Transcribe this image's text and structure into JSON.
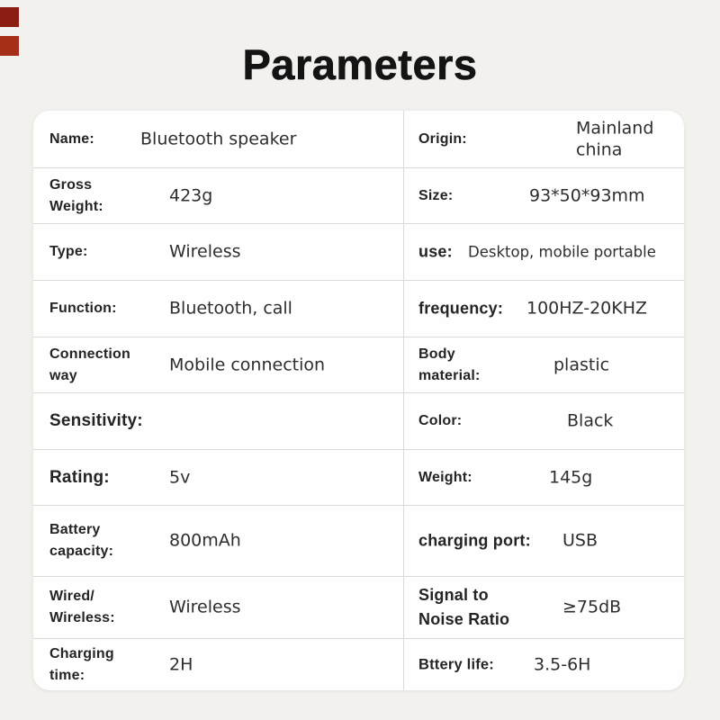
{
  "page": {
    "title": "Parameters"
  },
  "theme": {
    "background": "#f2f1ee",
    "card_background": "#fefefe",
    "divider_color": "#dcdad6",
    "label_color": "#242424",
    "value_color": "#2e2e2e",
    "title_color": "#141414",
    "corner_mark_dark": "#8c1d12",
    "corner_mark_light": "#a62f1a"
  },
  "table": {
    "rows": [
      {
        "left": {
          "label": "Name:",
          "value": "Bluetooth speaker"
        },
        "right": {
          "label": "Origin:",
          "value": "Mainland china"
        }
      },
      {
        "left": {
          "label": "Gross\nWeight:",
          "value": "423g"
        },
        "right": {
          "label": "Size:",
          "value": "93*50*93mm"
        }
      },
      {
        "left": {
          "label": "Type:",
          "value": "Wireless"
        },
        "right": {
          "label": "use:",
          "value": "Desktop, mobile portable"
        }
      },
      {
        "left": {
          "label": "Function:",
          "value": "Bluetooth, call"
        },
        "right": {
          "label": "frequency:",
          "value": "100HZ-20KHZ"
        }
      },
      {
        "left": {
          "label": "Connection\nway",
          "value": "Mobile connection"
        },
        "right": {
          "label": "Body\nmaterial:",
          "value": "plastic"
        }
      },
      {
        "left": {
          "label": "Sensitivity:",
          "value": ""
        },
        "right": {
          "label": "Color:",
          "value": "Black"
        }
      },
      {
        "left": {
          "label": "Rating:",
          "value": "5v"
        },
        "right": {
          "label": "Weight:",
          "value": "145g"
        }
      },
      {
        "left": {
          "label": "Battery\ncapacity:",
          "value": "800mAh"
        },
        "right": {
          "label": "charging port:",
          "value": "USB"
        }
      },
      {
        "left": {
          "label": "Wired/\nWireless:",
          "value": "Wireless"
        },
        "right": {
          "label": "Signal to\nNoise Ratio",
          "value": "≥75dB"
        }
      },
      {
        "left": {
          "label": "Charging\ntime:",
          "value": "2H"
        },
        "right": {
          "label": "Bttery life:",
          "value": "3.5-6H"
        }
      }
    ]
  }
}
